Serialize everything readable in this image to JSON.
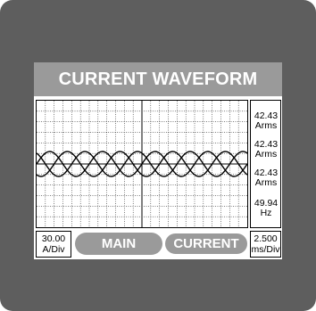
{
  "screen": {
    "title": "CURRENT WAVEFORM"
  },
  "readouts": [
    {
      "value": "42.43",
      "unit": "Arms"
    },
    {
      "value": "42.43",
      "unit": "Arms"
    },
    {
      "value": "42.43",
      "unit": "Arms"
    },
    {
      "value": "49.94",
      "unit": "Hz"
    }
  ],
  "bottom_bar": {
    "vertical_scale": {
      "value": "30.00",
      "unit": "A/Div"
    },
    "main_button": "MAIN",
    "current_button": "CURRENT",
    "time_scale": {
      "value": "2.500",
      "unit": "ms/Div"
    }
  },
  "colors": {
    "bezel": "#5e5e5e",
    "title_bar": "#9a9a9a",
    "button": "#9a9a9a",
    "trace": "#000000"
  },
  "waveform": {
    "phases": 3,
    "phase_shift_deg": 120,
    "cycles_shown": 4
  }
}
